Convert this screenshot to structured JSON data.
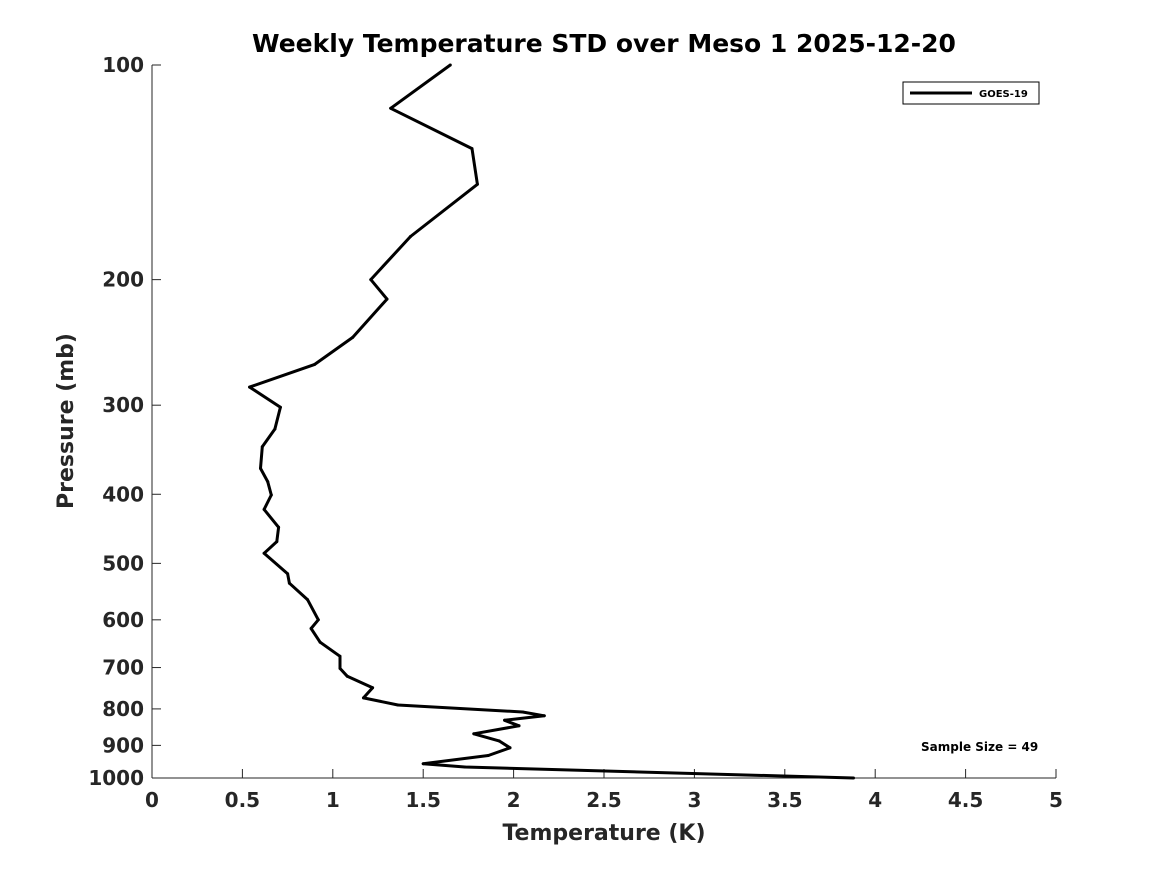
{
  "chart_data": {
    "type": "line",
    "title": "Weekly Temperature STD over Meso 1 2025-12-20",
    "xlabel": "Temperature (K)",
    "ylabel": "Pressure (mb)",
    "xlim": [
      0,
      5
    ],
    "ylim": [
      100,
      1000
    ],
    "yscale": "log",
    "yreversed": true,
    "xticks": [
      0,
      0.5,
      1,
      1.5,
      2,
      2.5,
      3,
      3.5,
      4,
      4.5,
      5
    ],
    "xtick_labels": [
      "0",
      "0.5",
      "1",
      "1.5",
      "2",
      "2.5",
      "3",
      "3.5",
      "4",
      "4.5",
      "5"
    ],
    "yticks": [
      100,
      200,
      300,
      400,
      500,
      600,
      700,
      800,
      900,
      1000
    ],
    "ytick_labels": [
      "100",
      "200",
      "300",
      "400",
      "500",
      "600",
      "700",
      "800",
      "900",
      "1000"
    ],
    "grid": false,
    "legend": {
      "position": "top-right",
      "entries": [
        "GOES-19"
      ]
    },
    "annotation": "Sample Size = 49",
    "series": [
      {
        "name": "GOES-19",
        "color": "#000000",
        "x": [
          1.65,
          1.32,
          1.77,
          1.8,
          1.43,
          1.21,
          1.3,
          1.11,
          0.9,
          0.54,
          0.71,
          0.68,
          0.61,
          0.6,
          0.64,
          0.66,
          0.62,
          0.7,
          0.69,
          0.62,
          0.75,
          0.76,
          0.86,
          0.92,
          0.88,
          0.93,
          1.04,
          1.04,
          1.08,
          1.22,
          1.17,
          1.36,
          2.05,
          2.17,
          1.95,
          2.03,
          1.78,
          1.92,
          1.98,
          1.86,
          1.5,
          1.73,
          3.88
        ],
        "y": [
          100,
          115,
          131,
          147,
          174,
          200,
          213,
          241,
          263,
          283,
          302,
          324,
          343,
          368,
          384,
          401,
          420,
          445,
          466,
          484,
          517,
          533,
          562,
          600,
          617,
          645,
          675,
          702,
          720,
          747,
          772,
          790,
          808,
          818,
          830,
          845,
          867,
          887,
          907,
          930,
          955,
          965,
          1000
        ]
      }
    ]
  }
}
